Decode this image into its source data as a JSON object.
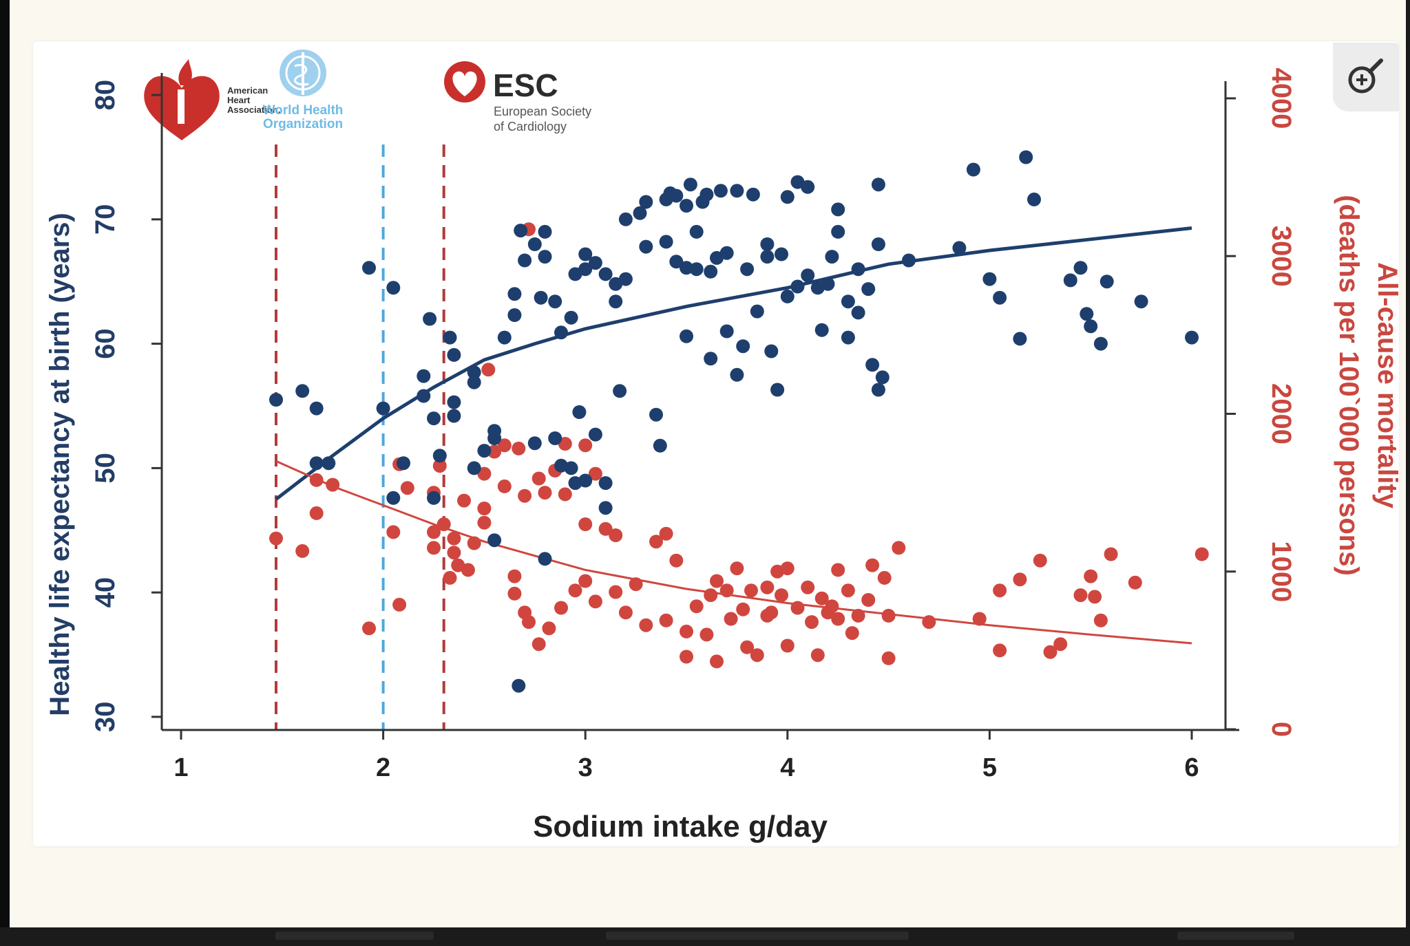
{
  "chart_data": {
    "type": "scatter",
    "xlabel": "Sodium intake g/day",
    "ylabel_left": "Healthy life expectancy at birth (years)",
    "ylabel_right_line1": "All-cause mortality",
    "ylabel_right_line2": "(deaths per 100`000 persons)",
    "x_ticks": [
      "1",
      "2",
      "3",
      "4",
      "5",
      "6"
    ],
    "y_left_ticks": [
      "30",
      "40",
      "50",
      "60",
      "70",
      "80"
    ],
    "y_right_ticks": [
      "0",
      "1000",
      "2000",
      "3000",
      "4000"
    ],
    "xlim": [
      1,
      6
    ],
    "ylim_left": [
      29,
      81
    ],
    "ylim_right": [
      0,
      4100
    ],
    "guideline_lines": [
      {
        "x": 1.47,
        "color": "#b23a3a",
        "organization": "American Heart Association"
      },
      {
        "x": 2.0,
        "color": "#4ea8dc",
        "organization": "World Health Organization"
      },
      {
        "x": 2.3,
        "color": "#b23a3a",
        "organization": "European Society of Cardiology"
      }
    ],
    "logos": {
      "aha": [
        "American",
        "Heart",
        "Association."
      ],
      "who": [
        "World Health",
        "Organization"
      ],
      "esc_title": "ESC",
      "esc_sub": [
        "European Society",
        "of Cardiology"
      ]
    },
    "series": [
      {
        "axis": "left",
        "color": "#1e3f6e",
        "fit_line": [
          [
            1.47,
            47.5
          ],
          [
            1.75,
            51.0
          ],
          [
            2.0,
            54.0
          ],
          [
            2.25,
            56.5
          ],
          [
            2.5,
            58.7
          ],
          [
            2.75,
            60.0
          ],
          [
            3.0,
            61.2
          ],
          [
            3.5,
            63.0
          ],
          [
            4.0,
            64.5
          ],
          [
            4.5,
            66.4
          ],
          [
            5.0,
            67.5
          ],
          [
            5.5,
            68.4
          ],
          [
            6.0,
            69.3
          ]
        ],
        "points": [
          [
            1.47,
            55.5
          ],
          [
            1.6,
            56.2
          ],
          [
            1.67,
            54.8
          ],
          [
            1.67,
            50.4
          ],
          [
            1.73,
            50.4
          ],
          [
            1.93,
            66.1
          ],
          [
            2.0,
            54.8
          ],
          [
            2.05,
            64.5
          ],
          [
            2.05,
            47.6
          ],
          [
            2.1,
            50.4
          ],
          [
            2.2,
            57.4
          ],
          [
            2.2,
            55.8
          ],
          [
            2.23,
            62.0
          ],
          [
            2.25,
            54.0
          ],
          [
            2.25,
            47.6
          ],
          [
            2.28,
            51.0
          ],
          [
            2.33,
            60.5
          ],
          [
            2.35,
            59.1
          ],
          [
            2.35,
            55.3
          ],
          [
            2.35,
            54.2
          ],
          [
            2.45,
            57.7
          ],
          [
            2.45,
            56.9
          ],
          [
            2.45,
            50.0
          ],
          [
            2.5,
            51.4
          ],
          [
            2.55,
            52.4
          ],
          [
            2.55,
            53.0
          ],
          [
            2.55,
            44.2
          ],
          [
            2.6,
            60.5
          ],
          [
            2.65,
            62.3
          ],
          [
            2.65,
            64.0
          ],
          [
            2.68,
            69.1
          ],
          [
            2.7,
            66.7
          ],
          [
            2.75,
            68.0
          ],
          [
            2.75,
            52.0
          ],
          [
            2.78,
            63.7
          ],
          [
            2.8,
            67.0
          ],
          [
            2.8,
            69.0
          ],
          [
            2.85,
            63.4
          ],
          [
            2.85,
            52.4
          ],
          [
            2.88,
            50.2
          ],
          [
            2.88,
            60.9
          ],
          [
            2.93,
            62.1
          ],
          [
            2.93,
            50.0
          ],
          [
            2.95,
            65.6
          ],
          [
            2.95,
            48.8
          ],
          [
            2.97,
            54.5
          ],
          [
            3.0,
            66.0
          ],
          [
            3.0,
            67.2
          ],
          [
            3.0,
            49.0
          ],
          [
            3.05,
            66.5
          ],
          [
            3.05,
            52.7
          ],
          [
            3.1,
            48.8
          ],
          [
            3.1,
            65.6
          ],
          [
            3.1,
            46.8
          ],
          [
            3.15,
            64.8
          ],
          [
            3.15,
            63.4
          ],
          [
            3.17,
            56.2
          ],
          [
            3.2,
            65.2
          ],
          [
            3.2,
            70.0
          ],
          [
            3.27,
            70.5
          ],
          [
            3.3,
            71.4
          ],
          [
            3.3,
            67.8
          ],
          [
            3.35,
            54.3
          ],
          [
            3.37,
            51.8
          ],
          [
            3.4,
            68.2
          ],
          [
            3.4,
            71.6
          ],
          [
            3.42,
            72.1
          ],
          [
            3.45,
            66.6
          ],
          [
            3.45,
            71.9
          ],
          [
            3.5,
            60.6
          ],
          [
            3.5,
            66.1
          ],
          [
            3.5,
            71.1
          ],
          [
            3.52,
            72.8
          ],
          [
            3.55,
            66.0
          ],
          [
            3.55,
            69.0
          ],
          [
            3.58,
            71.4
          ],
          [
            3.6,
            72.0
          ],
          [
            3.62,
            65.8
          ],
          [
            3.62,
            58.8
          ],
          [
            3.65,
            66.9
          ],
          [
            3.67,
            72.3
          ],
          [
            3.7,
            61.0
          ],
          [
            3.7,
            67.3
          ],
          [
            3.75,
            72.3
          ],
          [
            3.75,
            57.5
          ],
          [
            3.78,
            59.8
          ],
          [
            3.8,
            66.0
          ],
          [
            3.83,
            72.0
          ],
          [
            3.85,
            62.6
          ],
          [
            3.9,
            68.0
          ],
          [
            3.9,
            67.0
          ],
          [
            3.92,
            59.4
          ],
          [
            3.95,
            56.3
          ],
          [
            3.97,
            67.2
          ],
          [
            4.0,
            63.8
          ],
          [
            4.0,
            71.8
          ],
          [
            4.05,
            73.0
          ],
          [
            4.05,
            64.6
          ],
          [
            4.1,
            65.5
          ],
          [
            4.1,
            72.6
          ],
          [
            4.15,
            64.5
          ],
          [
            4.17,
            61.1
          ],
          [
            4.2,
            64.8
          ],
          [
            4.22,
            67.0
          ],
          [
            4.25,
            70.8
          ],
          [
            4.25,
            69.0
          ],
          [
            4.3,
            60.5
          ],
          [
            4.3,
            63.4
          ],
          [
            4.35,
            66.0
          ],
          [
            4.35,
            62.5
          ],
          [
            4.4,
            64.4
          ],
          [
            4.42,
            58.3
          ],
          [
            4.45,
            72.8
          ],
          [
            4.45,
            68.0
          ],
          [
            4.45,
            56.3
          ],
          [
            4.47,
            57.3
          ],
          [
            4.6,
            66.7
          ],
          [
            4.85,
            67.7
          ],
          [
            4.92,
            74.0
          ],
          [
            5.0,
            65.2
          ],
          [
            5.05,
            63.7
          ],
          [
            5.15,
            60.4
          ],
          [
            5.18,
            75.0
          ],
          [
            5.22,
            71.6
          ],
          [
            5.4,
            65.1
          ],
          [
            5.45,
            66.1
          ],
          [
            5.48,
            62.4
          ],
          [
            5.5,
            61.4
          ],
          [
            5.55,
            60.0
          ],
          [
            5.58,
            65.0
          ],
          [
            5.75,
            63.4
          ],
          [
            6.0,
            60.5
          ],
          [
            2.67,
            32.5
          ],
          [
            2.8,
            42.7
          ]
        ]
      },
      {
        "axis": "right",
        "color": "#d0463f",
        "fit_line": [
          [
            1.47,
            1700
          ],
          [
            1.75,
            1540
          ],
          [
            2.0,
            1420
          ],
          [
            2.25,
            1300
          ],
          [
            2.5,
            1190
          ],
          [
            3.0,
            1010
          ],
          [
            3.5,
            890
          ],
          [
            4.0,
            800
          ],
          [
            4.5,
            730
          ],
          [
            5.0,
            660
          ],
          [
            5.5,
            600
          ],
          [
            6.0,
            545
          ]
        ],
        "points": [
          [
            1.47,
            1210
          ],
          [
            1.6,
            1130
          ],
          [
            1.67,
            1580
          ],
          [
            1.67,
            1370
          ],
          [
            1.75,
            1550
          ],
          [
            1.93,
            640
          ],
          [
            2.05,
            1250
          ],
          [
            2.08,
            1680
          ],
          [
            2.08,
            790
          ],
          [
            2.12,
            1530
          ],
          [
            2.25,
            1500
          ],
          [
            2.25,
            1250
          ],
          [
            2.25,
            1150
          ],
          [
            2.28,
            1670
          ],
          [
            2.3,
            1300
          ],
          [
            2.33,
            960
          ],
          [
            2.35,
            1210
          ],
          [
            2.35,
            1120
          ],
          [
            2.37,
            1040
          ],
          [
            2.4,
            1450
          ],
          [
            2.42,
            1010
          ],
          [
            2.45,
            1180
          ],
          [
            2.5,
            1400
          ],
          [
            2.5,
            1620
          ],
          [
            2.5,
            1310
          ],
          [
            2.52,
            2280
          ],
          [
            2.55,
            1760
          ],
          [
            2.6,
            1800
          ],
          [
            2.6,
            1540
          ],
          [
            2.65,
            970
          ],
          [
            2.65,
            860
          ],
          [
            2.67,
            1780
          ],
          [
            2.7,
            1480
          ],
          [
            2.7,
            740
          ],
          [
            2.72,
            3170
          ],
          [
            2.72,
            680
          ],
          [
            2.77,
            1590
          ],
          [
            2.77,
            540
          ],
          [
            2.8,
            1500
          ],
          [
            2.82,
            640
          ],
          [
            2.85,
            1640
          ],
          [
            2.88,
            770
          ],
          [
            2.9,
            1810
          ],
          [
            2.9,
            1490
          ],
          [
            2.95,
            880
          ],
          [
            3.0,
            1300
          ],
          [
            3.0,
            1800
          ],
          [
            3.0,
            940
          ],
          [
            3.05,
            810
          ],
          [
            3.05,
            1620
          ],
          [
            3.1,
            1270
          ],
          [
            3.15,
            870
          ],
          [
            3.15,
            1230
          ],
          [
            3.2,
            740
          ],
          [
            3.25,
            920
          ],
          [
            3.3,
            660
          ],
          [
            3.35,
            1190
          ],
          [
            3.4,
            1240
          ],
          [
            3.4,
            690
          ],
          [
            3.45,
            1070
          ],
          [
            3.5,
            620
          ],
          [
            3.5,
            460
          ],
          [
            3.55,
            780
          ],
          [
            3.6,
            600
          ],
          [
            3.62,
            850
          ],
          [
            3.65,
            940
          ],
          [
            3.65,
            430
          ],
          [
            3.7,
            880
          ],
          [
            3.72,
            700
          ],
          [
            3.75,
            1020
          ],
          [
            3.78,
            760
          ],
          [
            3.8,
            520
          ],
          [
            3.82,
            880
          ],
          [
            3.85,
            470
          ],
          [
            3.9,
            720
          ],
          [
            3.9,
            900
          ],
          [
            3.92,
            740
          ],
          [
            3.95,
            1000
          ],
          [
            3.97,
            850
          ],
          [
            4.0,
            530
          ],
          [
            4.0,
            1020
          ],
          [
            4.05,
            770
          ],
          [
            4.1,
            900
          ],
          [
            4.12,
            680
          ],
          [
            4.15,
            470
          ],
          [
            4.17,
            830
          ],
          [
            4.2,
            740
          ],
          [
            4.22,
            780
          ],
          [
            4.25,
            1010
          ],
          [
            4.25,
            700
          ],
          [
            4.3,
            880
          ],
          [
            4.32,
            610
          ],
          [
            4.35,
            720
          ],
          [
            4.4,
            820
          ],
          [
            4.42,
            1040
          ],
          [
            4.48,
            960
          ],
          [
            4.5,
            450
          ],
          [
            4.5,
            720
          ],
          [
            4.55,
            1150
          ],
          [
            4.7,
            680
          ],
          [
            4.95,
            700
          ],
          [
            5.05,
            500
          ],
          [
            5.05,
            880
          ],
          [
            5.15,
            950
          ],
          [
            5.25,
            1070
          ],
          [
            5.3,
            490
          ],
          [
            5.35,
            540
          ],
          [
            5.45,
            850
          ],
          [
            5.5,
            970
          ],
          [
            5.52,
            840
          ],
          [
            5.55,
            690
          ],
          [
            5.6,
            1110
          ],
          [
            5.72,
            930
          ],
          [
            6.05,
            1110
          ]
        ]
      }
    ]
  }
}
